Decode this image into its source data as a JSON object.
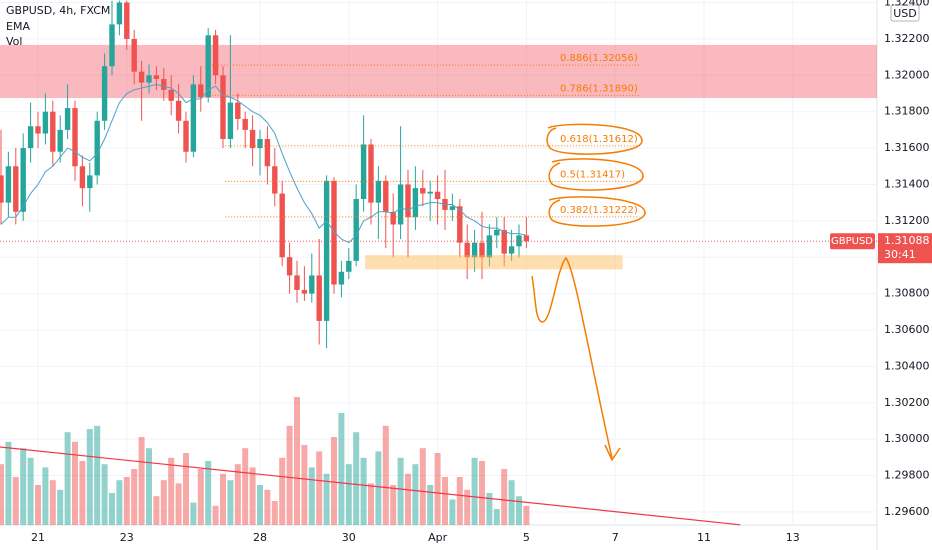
{
  "header": {
    "symbol": "GBPUSD, 4h, FXCM",
    "indicators": [
      "EMA",
      "Vol"
    ],
    "currency": "USD"
  },
  "chart_data": {
    "type": "candlestick",
    "x": [
      -5,
      -4,
      -3,
      -2,
      -1,
      0,
      1,
      2,
      3,
      4,
      5,
      6,
      7,
      8,
      9,
      10,
      11,
      12,
      13,
      14,
      15,
      16,
      17,
      18,
      19,
      20,
      21,
      22,
      23,
      24,
      25,
      26,
      27,
      28,
      29,
      30,
      31,
      32,
      33,
      34,
      35,
      36,
      37,
      38,
      39,
      40,
      41,
      42,
      43,
      44,
      45,
      46,
      47,
      48,
      49,
      50,
      51,
      52,
      53,
      54,
      55,
      56,
      57,
      58,
      59,
      60,
      61,
      62,
      63,
      64,
      65,
      66
    ],
    "open": [
      1.3145,
      1.313,
      1.315,
      1.3125,
      1.316,
      1.3172,
      1.3168,
      1.318,
      1.3158,
      1.317,
      1.3182,
      1.315,
      1.3138,
      1.3145,
      1.3175,
      1.3205,
      1.3228,
      1.324,
      1.322,
      1.3202,
      1.3196,
      1.32,
      1.3198,
      1.3192,
      1.3186,
      1.3175,
      1.3158,
      1.3195,
      1.3188,
      1.3222,
      1.32,
      1.3165,
      1.3185,
      1.3176,
      1.317,
      1.316,
      1.3165,
      1.315,
      1.3135,
      1.31,
      1.309,
      1.3082,
      1.308,
      1.309,
      1.3065,
      1.3142,
      1.3085,
      1.3092,
      1.3098,
      1.3132,
      1.3162,
      1.313,
      1.3142,
      1.3125,
      1.3118,
      1.314,
      1.3122,
      1.3138,
      1.3135,
      1.3136,
      1.3132,
      1.3126,
      1.3128,
      1.3108,
      1.31,
      1.3108,
      1.31,
      1.3112,
      1.3115,
      1.3102,
      1.3106,
      1.3112
    ],
    "high": [
      1.317,
      1.3158,
      1.316,
      1.3168,
      1.3185,
      1.318,
      1.319,
      1.3186,
      1.3178,
      1.3195,
      1.3186,
      1.3156,
      1.3152,
      1.318,
      1.3212,
      1.3241,
      1.3241,
      1.3241,
      1.3225,
      1.3208,
      1.3206,
      1.3205,
      1.3204,
      1.32,
      1.3195,
      1.318,
      1.32,
      1.3205,
      1.3226,
      1.3225,
      1.3205,
      1.3222,
      1.319,
      1.318,
      1.3178,
      1.317,
      1.3172,
      1.316,
      1.3142,
      1.3108,
      1.3098,
      1.3095,
      1.3102,
      1.311,
      1.3145,
      1.3144,
      1.3098,
      1.3105,
      1.314,
      1.3178,
      1.3165,
      1.315,
      1.3145,
      1.3135,
      1.3172,
      1.3148,
      1.315,
      1.3148,
      1.3142,
      1.3145,
      1.3148,
      1.3135,
      1.3132,
      1.3118,
      1.3115,
      1.3125,
      1.3118,
      1.3122,
      1.3122,
      1.3115,
      1.3118,
      1.3122
    ],
    "low": [
      1.3118,
      1.3122,
      1.3118,
      1.312,
      1.3152,
      1.316,
      1.3162,
      1.315,
      1.3152,
      1.3165,
      1.3142,
      1.3128,
      1.3125,
      1.314,
      1.317,
      1.32,
      1.3222,
      1.3214,
      1.3195,
      1.3175,
      1.319,
      1.3192,
      1.3186,
      1.3178,
      1.3168,
      1.3152,
      1.3155,
      1.318,
      1.3185,
      1.3195,
      1.316,
      1.316,
      1.317,
      1.316,
      1.315,
      1.3145,
      1.314,
      1.3128,
      1.3095,
      1.308,
      1.3075,
      1.3076,
      1.3075,
      1.3052,
      1.305,
      1.308,
      1.3078,
      1.3088,
      1.3095,
      1.3125,
      1.3118,
      1.311,
      1.3105,
      1.31,
      1.311,
      1.31,
      1.3115,
      1.3128,
      1.312,
      1.3118,
      1.3115,
      1.312,
      1.31,
      1.3088,
      1.3092,
      1.3088,
      1.3095,
      1.3105,
      1.3095,
      1.3098,
      1.31,
      1.3105
    ],
    "close": [
      1.313,
      1.315,
      1.3125,
      1.316,
      1.3172,
      1.3168,
      1.318,
      1.3158,
      1.317,
      1.3182,
      1.315,
      1.3138,
      1.3145,
      1.3175,
      1.3205,
      1.3228,
      1.324,
      1.322,
      1.3202,
      1.3196,
      1.32,
      1.3198,
      1.3192,
      1.3186,
      1.3175,
      1.3158,
      1.3195,
      1.3188,
      1.3222,
      1.32,
      1.3165,
      1.3185,
      1.3176,
      1.317,
      1.316,
      1.3165,
      1.315,
      1.3135,
      1.31,
      1.309,
      1.3082,
      1.308,
      1.309,
      1.3065,
      1.3142,
      1.3085,
      1.3092,
      1.3098,
      1.3132,
      1.3162,
      1.313,
      1.3142,
      1.3125,
      1.3118,
      1.314,
      1.3122,
      1.3138,
      1.3135,
      1.3136,
      1.3132,
      1.3126,
      1.3128,
      1.3108,
      1.31,
      1.3108,
      1.31,
      1.3112,
      1.3115,
      1.3102,
      1.3106,
      1.3112,
      1.31088
    ],
    "volume": [
      38,
      52,
      30,
      48,
      42,
      25,
      36,
      28,
      22,
      58,
      52,
      40,
      60,
      62,
      38,
      20,
      28,
      30,
      35,
      55,
      48,
      18,
      28,
      42,
      26,
      45,
      14,
      35,
      40,
      12,
      32,
      28,
      38,
      48,
      36,
      25,
      22,
      15,
      42,
      62,
      80,
      50,
      36,
      46,
      32,
      55,
      70,
      38,
      58,
      42,
      26,
      46,
      62,
      25,
      42,
      32,
      38,
      48,
      25,
      45,
      30,
      16,
      30,
      22,
      42,
      40,
      20,
      10,
      35,
      28,
      18,
      12
    ],
    "ema": {
      "name": "EMA",
      "color": "#4aa3c8",
      "values": [
        1.3118,
        1.3122,
        1.3122,
        1.3128,
        1.3135,
        1.314,
        1.3147,
        1.315,
        1.3155,
        1.316,
        1.3158,
        1.3155,
        1.3153,
        1.3157,
        1.3165,
        1.3175,
        1.3185,
        1.319,
        1.3192,
        1.3193,
        1.3194,
        1.3195,
        1.3194,
        1.3193,
        1.319,
        1.3185,
        1.3187,
        1.3187,
        1.3192,
        1.3194,
        1.3189,
        1.3188,
        1.3186,
        1.3183,
        1.318,
        1.3178,
        1.3174,
        1.3168,
        1.3157,
        1.3147,
        1.3138,
        1.313,
        1.3124,
        1.3116,
        1.312,
        1.3114,
        1.311,
        1.3108,
        1.3112,
        1.312,
        1.3122,
        1.3125,
        1.3125,
        1.3124,
        1.3127,
        1.3126,
        1.3128,
        1.3129,
        1.313,
        1.313,
        1.3129,
        1.3129,
        1.3126,
        1.3122,
        1.312,
        1.3117,
        1.3116,
        1.3116,
        1.3114,
        1.3113,
        1.3113,
        1.3112
      ]
    },
    "up_color": "#26a69a",
    "down_color": "#ef5350",
    "xlim": [
      -5.135,
      113.38
    ],
    "ylim": [
      1.29528,
      1.32414
    ],
    "yticks": [
      {
        "value": 1.296,
        "label": "1.29600"
      },
      {
        "value": 1.298,
        "label": "1.29800"
      },
      {
        "value": 1.3,
        "label": "1.30000"
      },
      {
        "value": 1.302,
        "label": "1.30200"
      },
      {
        "value": 1.304,
        "label": "1.30400"
      },
      {
        "value": 1.306,
        "label": "1.30600"
      },
      {
        "value": 1.308,
        "label": "1.30800"
      },
      {
        "value": 1.31,
        "label": "1.31000"
      },
      {
        "value": 1.312,
        "label": "1.31200"
      },
      {
        "value": 1.314,
        "label": "1.31400"
      },
      {
        "value": 1.316,
        "label": "1.31600"
      },
      {
        "value": 1.318,
        "label": "1.31800"
      },
      {
        "value": 1.32,
        "label": "1.32000"
      },
      {
        "value": 1.322,
        "label": "1.32200"
      },
      {
        "value": 1.324,
        "label": "1.32400"
      }
    ],
    "xticks": [
      {
        "value": 0,
        "label": "21"
      },
      {
        "value": 12,
        "label": "23"
      },
      {
        "value": 30,
        "label": "28"
      },
      {
        "value": 42,
        "label": "30"
      },
      {
        "value": 54,
        "label": "Apr"
      },
      {
        "value": 66,
        "label": "5"
      },
      {
        "value": 78,
        "label": "7"
      },
      {
        "value": 90,
        "label": "11"
      },
      {
        "value": 102,
        "label": "13"
      }
    ],
    "fib_levels": [
      {
        "label": "0.886(1.32056)",
        "price": 1.32056,
        "x_range": [
          23.5,
          81.3
        ]
      },
      {
        "label": "0.786(1.31890)",
        "price": 1.3189,
        "x_range": [
          23.5,
          81.3
        ]
      },
      {
        "label": "0.618(1.31612)",
        "price": 1.31612,
        "x_range": [
          25.3,
          81.3
        ]
      },
      {
        "label": "0.5(1.31417)",
        "price": 1.31417,
        "x_range": [
          25.3,
          81.3
        ]
      },
      {
        "label": "0.382(1.31222)",
        "price": 1.31222,
        "x_range": [
          25.3,
          81.3
        ]
      }
    ],
    "resistance_zone": {
      "top": 1.32167,
      "bottom": 1.31875
    },
    "support_zone": {
      "top": 1.30995,
      "bottom": 1.3095,
      "x_range": [
        44.2,
        79
      ]
    },
    "trend_line": {
      "x": [
        -5.135,
        94.9
      ],
      "y": [
        1.29957,
        1.29529
      ]
    },
    "last_price": {
      "symbol": "GBPUSD",
      "label": "1.31088",
      "value": 1.31088,
      "countdown": "30:41"
    }
  }
}
